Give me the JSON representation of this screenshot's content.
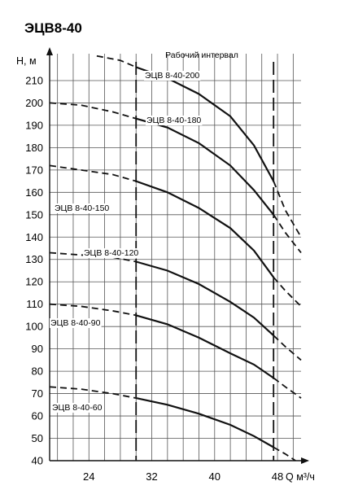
{
  "chart_data": {
    "type": "line",
    "title": "ЭЦВ8-40",
    "ylabel": "Н, м",
    "xlabel": "Q м³/ч",
    "xlim": [
      19,
      51
    ],
    "ylim": [
      40,
      222
    ],
    "xticks": [
      24,
      32,
      40,
      48
    ],
    "yticks": [
      40,
      50,
      60,
      70,
      80,
      90,
      100,
      110,
      120,
      130,
      140,
      150,
      160,
      170,
      180,
      190,
      200,
      210
    ],
    "grid": true,
    "working_interval": {
      "label": "Рабочий интервал",
      "q_min": 30,
      "q_max": 47.5
    },
    "series": [
      {
        "name": "ЭЦВ 8-40-200",
        "solid": [
          [
            30,
            216
          ],
          [
            34,
            211
          ],
          [
            38,
            204
          ],
          [
            42,
            194
          ],
          [
            45,
            181
          ],
          [
            47.5,
            165
          ]
        ],
        "dashed_left": [
          [
            25,
            221
          ],
          [
            28,
            219
          ],
          [
            30,
            216
          ]
        ],
        "dashed_right": [
          [
            47.5,
            165
          ],
          [
            49,
            152
          ],
          [
            51,
            140
          ]
        ]
      },
      {
        "name": "ЭЦВ 8-40-180",
        "solid": [
          [
            30,
            193
          ],
          [
            34,
            189
          ],
          [
            38,
            182
          ],
          [
            42,
            172
          ],
          [
            45,
            161
          ],
          [
            47.5,
            150
          ]
        ],
        "dashed_left": [
          [
            19,
            200
          ],
          [
            23,
            199
          ],
          [
            27,
            196
          ],
          [
            30,
            193
          ]
        ],
        "dashed_right": [
          [
            47.5,
            150
          ],
          [
            49,
            142
          ],
          [
            51,
            133
          ]
        ]
      },
      {
        "name": "ЭЦВ 8-40-150",
        "solid": [
          [
            30,
            165
          ],
          [
            34,
            160
          ],
          [
            38,
            153
          ],
          [
            42,
            144
          ],
          [
            45,
            134
          ],
          [
            47.5,
            122
          ]
        ],
        "dashed_left": [
          [
            19,
            172
          ],
          [
            23,
            170
          ],
          [
            27,
            168
          ],
          [
            30,
            165
          ]
        ],
        "dashed_right": [
          [
            47.5,
            122
          ],
          [
            49,
            116
          ],
          [
            51,
            109
          ]
        ]
      },
      {
        "name": "ЭЦВ 8-40-120",
        "solid": [
          [
            30,
            129
          ],
          [
            34,
            125
          ],
          [
            38,
            119
          ],
          [
            42,
            111
          ],
          [
            45,
            104
          ],
          [
            47.5,
            96
          ]
        ],
        "dashed_left": [
          [
            19,
            133
          ],
          [
            23,
            132
          ],
          [
            27,
            131
          ],
          [
            30,
            129
          ]
        ],
        "dashed_right": [
          [
            47.5,
            96
          ],
          [
            49,
            91
          ],
          [
            51,
            85
          ]
        ]
      },
      {
        "name": "ЭЦВ 8-40-90",
        "solid": [
          [
            30,
            105
          ],
          [
            34,
            101
          ],
          [
            38,
            95
          ],
          [
            42,
            88
          ],
          [
            45,
            83
          ],
          [
            47.5,
            77
          ]
        ],
        "dashed_left": [
          [
            19,
            110
          ],
          [
            23,
            109
          ],
          [
            27,
            107
          ],
          [
            30,
            105
          ]
        ],
        "dashed_right": [
          [
            47.5,
            77
          ],
          [
            49,
            73
          ],
          [
            51,
            68
          ]
        ]
      },
      {
        "name": "ЭЦВ 8-40-60",
        "solid": [
          [
            30,
            68
          ],
          [
            34,
            65
          ],
          [
            38,
            61
          ],
          [
            42,
            56
          ],
          [
            45,
            51
          ],
          [
            47.5,
            46
          ]
        ],
        "dashed_left": [
          [
            19,
            73
          ],
          [
            23,
            72
          ],
          [
            27,
            70
          ],
          [
            30,
            68
          ]
        ],
        "dashed_right": [
          [
            47.5,
            46
          ],
          [
            49,
            43
          ],
          [
            50.3,
            40
          ]
        ]
      }
    ]
  }
}
